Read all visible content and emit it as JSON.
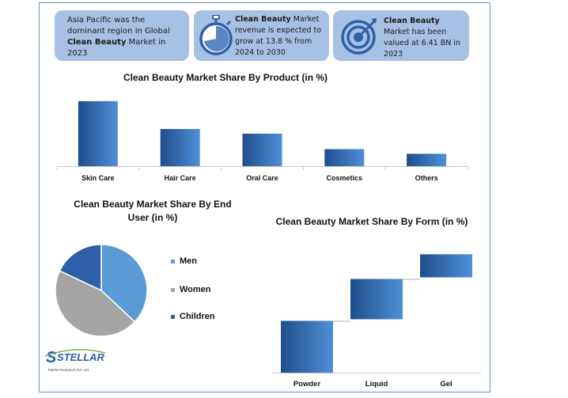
{
  "cards": [
    {
      "pre": "Asia Pacific was the dominant region in Global ",
      "bold": "Clean Beauty",
      "post": " Market in 2023",
      "icon": "none"
    },
    {
      "pre": "",
      "bold": "Clean Beauty",
      "post": " Market revenue is expected to grow at 13.8 % from 2024 to 2030",
      "icon": "stopwatch-icon"
    },
    {
      "pre": "",
      "bold": "Clean Beauty",
      "post": " Market has been valued at 6.41 BN in 2023",
      "icon": "target-icon"
    }
  ],
  "colors": {
    "card_bg": "#a7c1e4",
    "bar_dark": "#1f4e8c",
    "bar_light": "#4f8fd8",
    "men": "#5b9bd5",
    "women": "#a5a5a5",
    "children": "#2e5fa8",
    "frame": "#6b8fc4"
  },
  "chart_data": [
    {
      "type": "bar",
      "title": "Clean Beauty Market Share By Product (in %)",
      "categories": [
        "Skin Care",
        "Hair Care",
        "Oral Care",
        "Cosmetics",
        "Others"
      ],
      "values": [
        42,
        24,
        21,
        11,
        8
      ],
      "xlabel": "",
      "ylabel": "",
      "ylim": [
        0,
        45
      ],
      "grid": false
    },
    {
      "type": "pie",
      "title": "Clean Beauty Market Share By End User (in %)",
      "labels": [
        "Men",
        "Women",
        "Children"
      ],
      "values": [
        37,
        45,
        18
      ],
      "legend": "right"
    },
    {
      "type": "bar",
      "title": "Clean Beauty Market Share By Form (in %)",
      "categories": [
        "Powder",
        "Liquid",
        "Gel"
      ],
      "values": [
        36,
        28,
        16
      ],
      "xlabel": "",
      "ylabel": "",
      "note": "waterfall-style floating bars"
    }
  ],
  "logo": {
    "name": "STELLAR",
    "tagline": "Market Research Pvt. Ltd."
  }
}
